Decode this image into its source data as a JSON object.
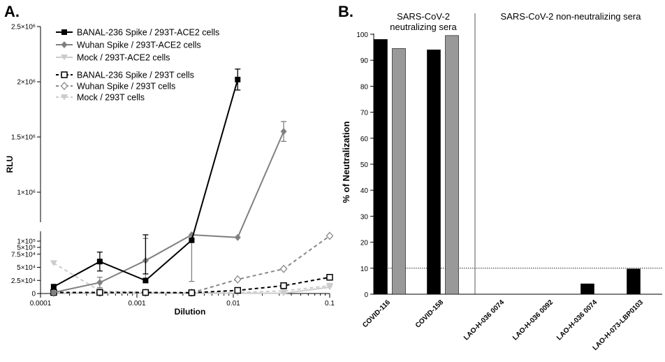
{
  "chart_data": [
    {
      "panel": "A.",
      "type": "line",
      "xlabel": "Dilution",
      "ylabel": "RLU",
      "xscale": "log",
      "xlim": [
        0.0001,
        0.1
      ],
      "xticks": [
        "0.0001",
        "0.001",
        "0.01",
        "0.1"
      ],
      "ylim": [
        0,
        2500000
      ],
      "y_axis_break": "between 1×10^5 and 5×10^5",
      "yticks_upper": [
        "5×10⁵",
        "1×10⁶",
        "1.5×10⁶",
        "2×10⁶",
        "2.5×10⁶"
      ],
      "yticks_lower": [
        "0",
        "2.5×10⁴",
        "5×10⁴",
        "7.5×10⁴",
        "1×10⁵"
      ],
      "legend_position": "top-left",
      "x": [
        0.000137,
        0.000412,
        0.00123,
        0.0037,
        0.0111,
        0.0333,
        0.1
      ],
      "series": [
        {
          "name": "BANAL-236 Spike / 293T-ACE2 cells",
          "color": "#000000",
          "marker": "square-filled",
          "dash": "solid",
          "values": [
            13000,
            61000,
            200000,
            565000,
            2020000,
            null,
            null
          ],
          "errors": [
            0,
            18000,
            60000,
            0,
            95000,
            null,
            null
          ]
        },
        {
          "name": "Wuhan Spike / 293T-ACE2 cells",
          "color": "#808080",
          "marker": "diamond-filled",
          "dash": "solid",
          "values": [
            2000,
            21000,
            63000,
            147000,
            590000,
            1550000,
            null
          ],
          "errors": [
            0,
            10000,
            42000,
            45000,
            0,
            90000,
            null
          ]
        },
        {
          "name": "Mock / 293T-ACE2 cells",
          "color": "#cccccc",
          "marker": "triangle-down-filled",
          "dash": "solid",
          "values": [
            800,
            500,
            500,
            500,
            500,
            500,
            12000
          ],
          "errors": [
            0,
            0,
            0,
            0,
            0,
            0,
            0
          ]
        },
        {
          "name": "BANAL-236 Spike / 293T cells",
          "color": "#000000",
          "marker": "square-open",
          "dash": "dashed",
          "values": [
            2000,
            2000,
            2000,
            1500,
            6000,
            15000,
            31000
          ],
          "errors": [
            0,
            0,
            0,
            0,
            0,
            0,
            3000
          ]
        },
        {
          "name": "Wuhan Spike / 293T cells",
          "color": "#888888",
          "marker": "diamond-open",
          "dash": "dashed",
          "values": [
            1500,
            1500,
            1500,
            1500,
            27000,
            47000,
            110000
          ],
          "errors": [
            0,
            0,
            0,
            0,
            0,
            0,
            0
          ]
        },
        {
          "name": "Mock / 293T cells",
          "color": "#cccccc",
          "marker": "triangle-down-filled",
          "dash": "dashed",
          "values": [
            58000,
            5000,
            2000,
            2000,
            2000,
            5000,
            15000
          ],
          "errors": [
            0,
            0,
            0,
            0,
            0,
            0,
            0
          ]
        }
      ]
    },
    {
      "panel": "B.",
      "type": "bar",
      "ylabel": "% of Neutralization",
      "ylim": [
        0,
        100
      ],
      "yticks": [
        0,
        10,
        20,
        30,
        40,
        50,
        60,
        70,
        80,
        90,
        100
      ],
      "threshold": 10,
      "group_labels": [
        {
          "lines": [
            "SARS-CoV-2",
            "neutralizing sera"
          ]
        },
        {
          "lines": [
            "SARS-CoV-2 non-neutralizing sera"
          ]
        }
      ],
      "categories": [
        "COVID-116",
        "COVID-158",
        "LAO-H-036 0074",
        "LAO-H-036 0092",
        "LAO-H-036 0074",
        "LAO-H-073-LBP0103"
      ],
      "series": [
        {
          "color": "#000000",
          "values": [
            98,
            94,
            0,
            0,
            4,
            9.7
          ]
        },
        {
          "color": "#999999",
          "values": [
            94.5,
            99.5,
            0,
            0,
            0,
            0
          ]
        }
      ]
    }
  ]
}
